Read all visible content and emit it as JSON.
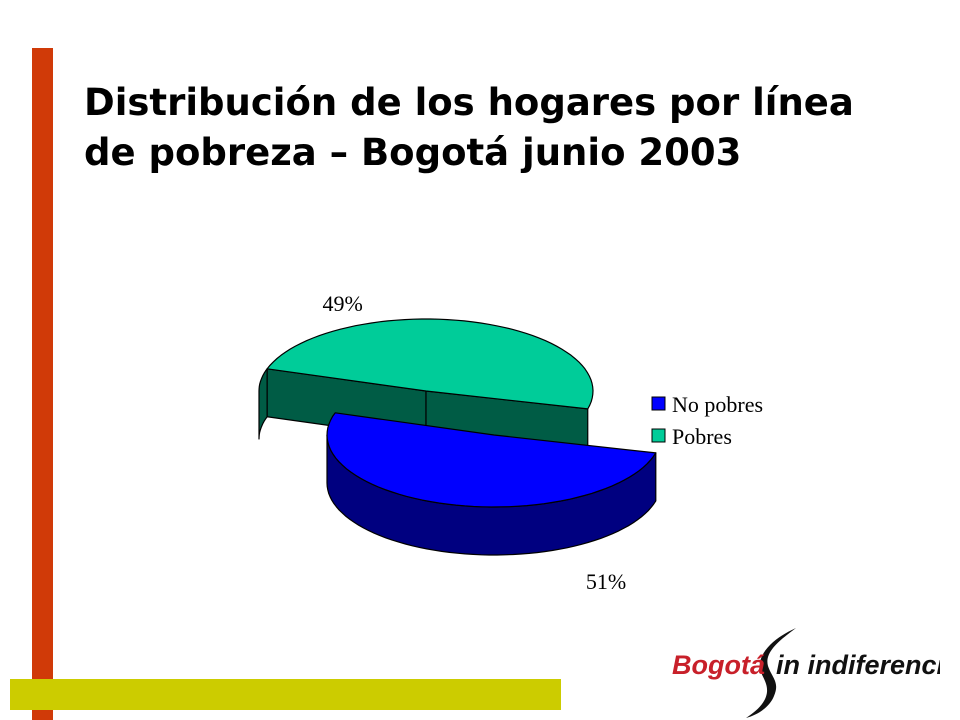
{
  "slide": {
    "title_lines": [
      "Distribución de los hogares por línea",
      "de pobreza – Bogotá junio 2003"
    ]
  },
  "colors": {
    "accent_vertical": "#D03A08",
    "accent_horizontal": "#CCCC00",
    "logo_red": "#C8202A",
    "logo_black": "#111111"
  },
  "chart_data": {
    "type": "pie",
    "style": "3d-exploded",
    "categories": [
      "No pobres",
      "Pobres"
    ],
    "values": [
      51,
      49
    ],
    "data_labels": [
      "51%",
      "49%"
    ],
    "colors": [
      "#0000FF",
      "#00CC99"
    ],
    "legend": "right"
  },
  "logo": {
    "word1": "Bogotá",
    "word2": "in indiferencia"
  }
}
